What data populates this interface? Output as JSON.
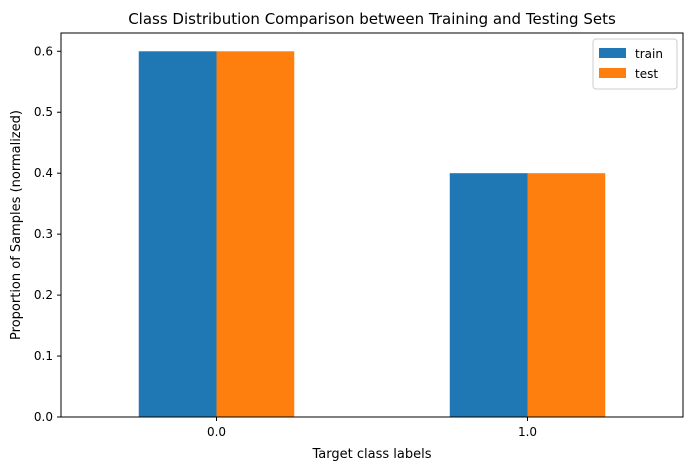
{
  "chart_data": {
    "type": "bar",
    "title": "Class Distribution Comparison between Training and Testing Sets",
    "xlabel": "Target class labels",
    "ylabel": "Proportion of Samples (normalized)",
    "categories": [
      "0.0",
      "1.0"
    ],
    "series": [
      {
        "name": "train",
        "values": [
          0.6,
          0.4
        ],
        "color": "#1f77b4"
      },
      {
        "name": "test",
        "values": [
          0.6,
          0.4
        ],
        "color": "#ff7f0e"
      }
    ],
    "ylim": [
      0,
      0.63
    ],
    "yticks": [
      0.0,
      0.1,
      0.2,
      0.3,
      0.4,
      0.5,
      0.6
    ],
    "ytick_labels": [
      "0.0",
      "0.1",
      "0.2",
      "0.3",
      "0.4",
      "0.5",
      "0.6"
    ],
    "grid": false,
    "legend_position": "top-right"
  }
}
